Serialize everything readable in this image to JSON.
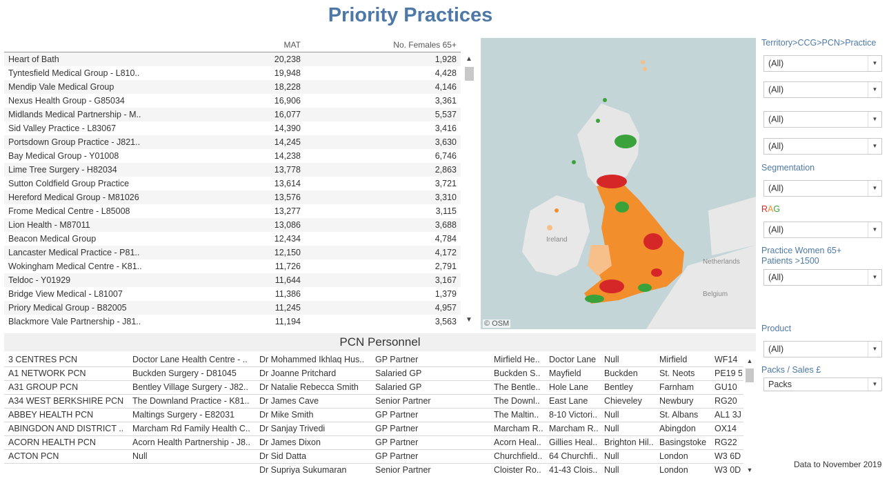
{
  "title": "Priority Practices",
  "practices": {
    "col_mat": "MAT",
    "col_females": "No. Females 65+",
    "rows": [
      {
        "name": "Heart of Bath",
        "mat": "20,238",
        "females": "1,928"
      },
      {
        "name": "Tyntesfield Medical Group - L810..",
        "mat": "19,948",
        "females": "4,428"
      },
      {
        "name": "Mendip Vale Medical Group",
        "mat": "18,228",
        "females": "4,146"
      },
      {
        "name": "Nexus Health Group - G85034",
        "mat": "16,906",
        "females": "3,361"
      },
      {
        "name": "Midlands Medical Partnership - M..",
        "mat": "16,077",
        "females": "5,537"
      },
      {
        "name": "Sid Valley Practice - L83067",
        "mat": "14,390",
        "females": "3,416"
      },
      {
        "name": "Portsdown Group Practice - J821..",
        "mat": "14,245",
        "females": "3,630"
      },
      {
        "name": "Bay Medical Group - Y01008",
        "mat": "14,238",
        "females": "6,746"
      },
      {
        "name": "Lime Tree Surgery - H82034",
        "mat": "13,778",
        "females": "2,863"
      },
      {
        "name": "Sutton Coldfield Group Practice",
        "mat": "13,614",
        "females": "3,721"
      },
      {
        "name": "Hereford Medical Group - M81026",
        "mat": "13,576",
        "females": "3,310"
      },
      {
        "name": "Frome Medical Centre - L85008",
        "mat": "13,277",
        "females": "3,115"
      },
      {
        "name": "Lion Health - M87011",
        "mat": "13,086",
        "females": "3,688"
      },
      {
        "name": "Beacon Medical Group",
        "mat": "12,434",
        "females": "4,784"
      },
      {
        "name": "Lancaster Medical Practice - P81..",
        "mat": "12,150",
        "females": "4,172"
      },
      {
        "name": "Wokingham Medical Centre - K81..",
        "mat": "11,726",
        "females": "2,791"
      },
      {
        "name": "Teldoc - Y01929",
        "mat": "11,644",
        "females": "3,167"
      },
      {
        "name": "Bridge View Medical - L81007",
        "mat": "11,386",
        "females": "1,379"
      },
      {
        "name": "Priory Medical Group - B82005",
        "mat": "11,245",
        "females": "4,957"
      },
      {
        "name": "Blackmore Vale Partnership - J81..",
        "mat": "11,194",
        "females": "3,563"
      }
    ]
  },
  "map": {
    "label_ireland": "Ireland",
    "label_netherlands": "Netherlands",
    "label_belgium": "Belgium",
    "attribution": "© OSM",
    "colors": {
      "sea": "#c4d5d8",
      "land": "#e8e8e8",
      "red": "#d62728",
      "orange": "#f28e2b",
      "green": "#3aa23a",
      "light_orange": "#f7c08a"
    }
  },
  "filters": {
    "territory_label": "Territory>CCG>PCN>Practice",
    "sel1": "(All)",
    "sel2": "(All)",
    "sel3": "(All)",
    "sel4": "(All)",
    "segmentation_label": "Segmentation",
    "segmentation_value": "(All)",
    "rag_r": "R",
    "rag_a": "A",
    "rag_g": "G",
    "rag_value": "(All)",
    "women_label_1": "Practice Women 65+",
    "women_label_2": "Patients >1500",
    "women_value": "(All)",
    "product_label": "Product",
    "product_value": "(All)",
    "packs_label": "Packs / Sales £",
    "packs_value": "Packs",
    "data_note": "Data to November 2019"
  },
  "pcn": {
    "title": "PCN Personnel",
    "rows": [
      [
        "3 CENTRES PCN",
        "Doctor Lane Health Centre - ..",
        "Dr Mohammed Ikhlaq Hus..",
        "GP Partner",
        "Mirfield He..",
        "Doctor Lane",
        "Null",
        "Mirfield",
        "WF14"
      ],
      [
        "A1 NETWORK PCN",
        "Buckden Surgery - D81045",
        "Dr Joanne Pritchard",
        "Salaried GP",
        "Buckden S..",
        "Mayfield",
        "Buckden",
        "St. Neots",
        "PE19 5"
      ],
      [
        "A31 GROUP PCN",
        "Bentley Village Surgery - J82..",
        "Dr Natalie Rebecca Smith",
        "Salaried GP",
        "The Bentle..",
        "Hole Lane",
        "Bentley",
        "Farnham",
        "GU10"
      ],
      [
        "A34 WEST BERKSHIRE PCN",
        "The Downland Practice - K81..",
        "Dr James Cave",
        "Senior Partner",
        "The Downl..",
        "East Lane",
        "Chieveley",
        "Newbury",
        "RG20"
      ],
      [
        "ABBEY HEALTH PCN",
        "Maltings Surgery - E82031",
        "Dr Mike Smith",
        "GP Partner",
        "The Maltin..",
        "8-10 Victori..",
        "Null",
        "St. Albans",
        "AL1 3J"
      ],
      [
        "ABINGDON AND DISTRICT ..",
        "Marcham Rd Family Health C..",
        "Dr Sanjay Trivedi",
        "GP Partner",
        "Marcham R..",
        "Marcham R..",
        "Null",
        "Abingdon",
        "OX14"
      ],
      [
        "ACORN HEALTH PCN",
        "Acorn Health Partnership - J8..",
        "Dr James Dixon",
        "GP Partner",
        "Acorn Heal..",
        "Gillies Heal..",
        "Brighton Hil..",
        "Basingstoke",
        "RG22"
      ],
      [
        "ACTON PCN",
        "Null",
        "Dr Sid Datta",
        "GP Partner",
        "Churchfield..",
        "64 Churchfi..",
        "Null",
        "London",
        "W3 6D"
      ],
      [
        "",
        "",
        "Dr Supriya Sukumaran",
        "Senior Partner",
        "Cloister Ro..",
        "41-43 Clois..",
        "Null",
        "London",
        "W3 0D"
      ]
    ]
  }
}
